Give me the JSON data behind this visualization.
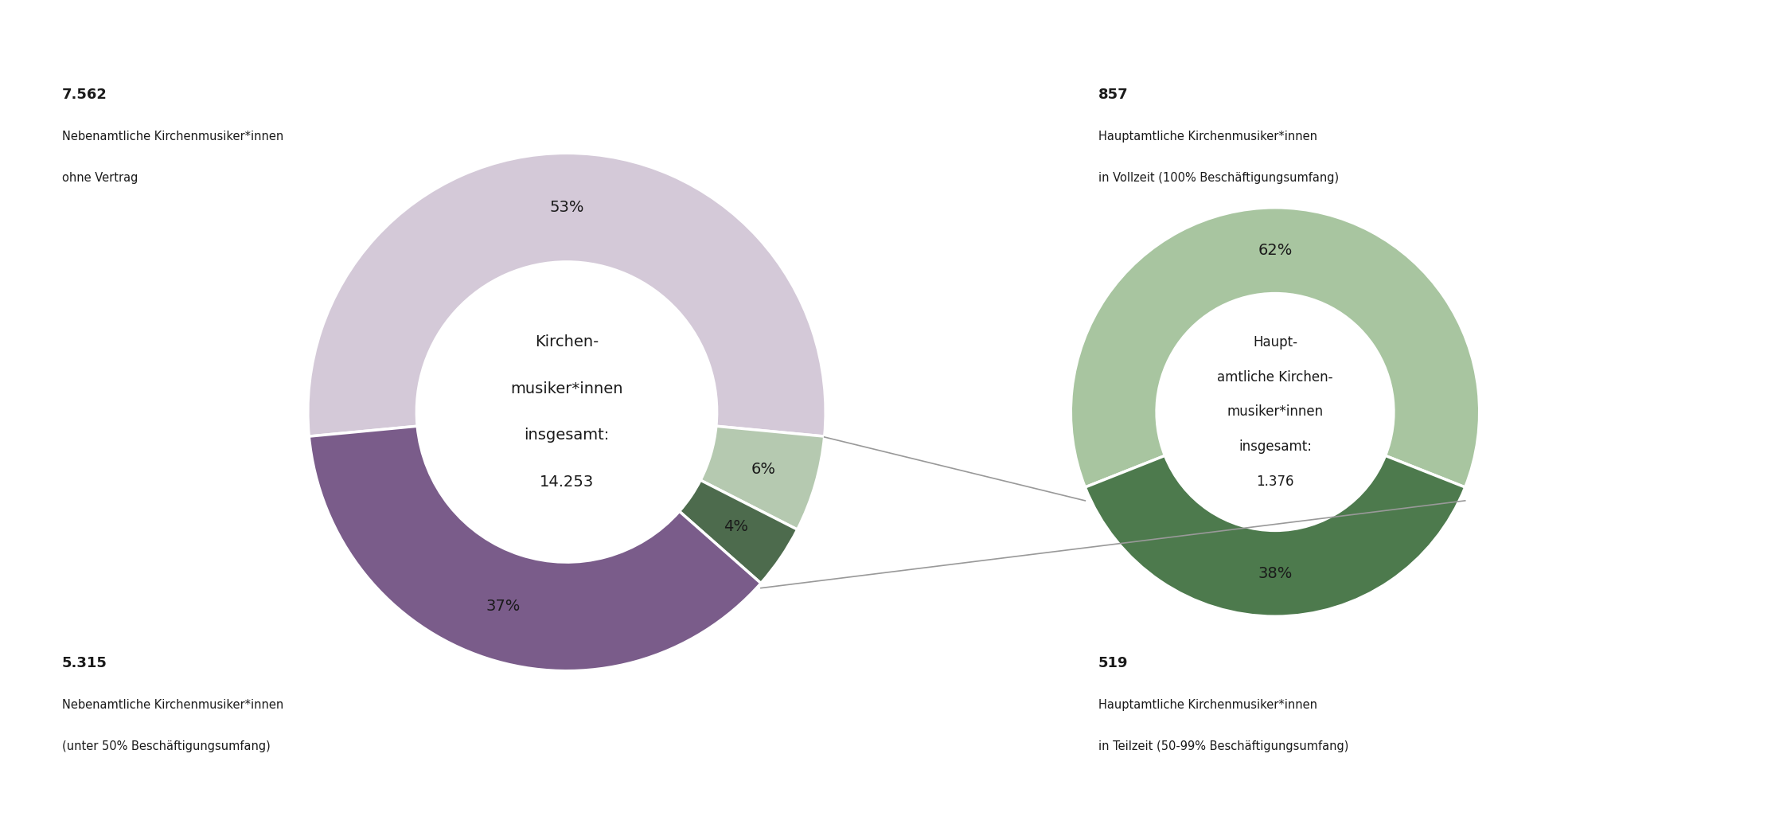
{
  "left_chart": {
    "center_text_lines": [
      "Kirchen-",
      "musiker*innen",
      "insgesamt:",
      "14.253"
    ],
    "slices": [
      {
        "value": 53,
        "color": "#d4c9d8",
        "pct_label": "53%"
      },
      {
        "value": 6,
        "color": "#b5c9b0",
        "pct_label": "6%"
      },
      {
        "value": 4,
        "color": "#4d6b4d",
        "pct_label": "4%"
      },
      {
        "value": 37,
        "color": "#7a5c8a",
        "pct_label": "37%"
      }
    ]
  },
  "right_chart": {
    "center_text_lines": [
      "Haupt-",
      "amtliche Kirchen-",
      "musiker*innen",
      "insgesamt:",
      "1.376"
    ],
    "slices": [
      {
        "value": 62,
        "color": "#a8c5a0",
        "pct_label": "62%"
      },
      {
        "value": 38,
        "color": "#4d7a4d",
        "pct_label": "38%"
      }
    ]
  },
  "left_annot_top_num": "7.562",
  "left_annot_top_l1": "Nebenamtliche Kirchenmusiker*innen",
  "left_annot_top_l2": "ohne Vertrag",
  "left_annot_bot_num": "5.315",
  "left_annot_bot_l1": "Nebenamtliche Kirchenmusiker*innen",
  "left_annot_bot_l2": "(unter 50% Beschäftigungsumfang)",
  "right_annot_top_num": "857",
  "right_annot_top_l1": "Hauptamtliche Kirchenmusiker*innen",
  "right_annot_top_l2": "in Vollzeit (100% Beschäftigungsumfang)",
  "right_annot_bot_num": "519",
  "right_annot_bot_l1": "Hauptamtliche Kirchenmusiker*innen",
  "right_annot_bot_l2": "in Teilzeit (50-99% Beschäftigungsumfang)",
  "bg_color": "#ffffff",
  "text_color": "#1a1a1a",
  "connector_color": "#999999"
}
